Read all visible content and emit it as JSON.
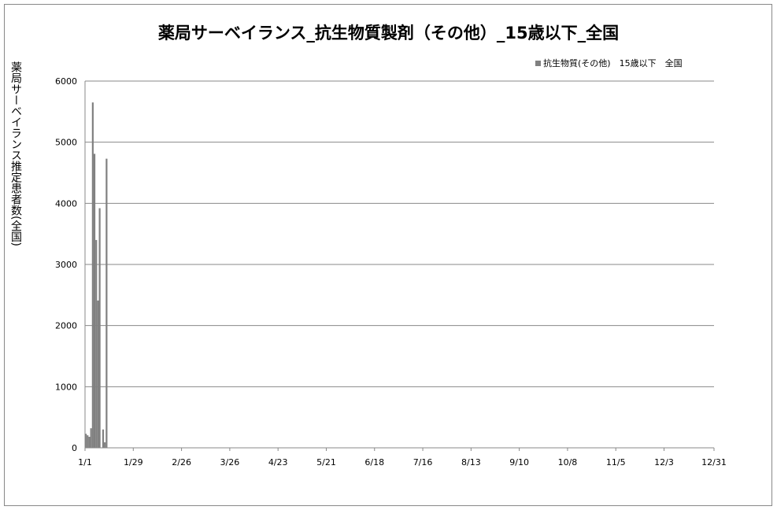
{
  "chart_data": {
    "type": "bar",
    "title": "薬局サーベイランス_抗生物質製剤（その他）_15歳以下_全国",
    "ylabel": "薬局サーベイランス推定患者数(全国)",
    "xlabel": "",
    "legend": {
      "entries": [
        "抗生物質(その他)　15歳以下　全国"
      ],
      "position": "top-right"
    },
    "ylim": [
      0,
      6000
    ],
    "yticks": [
      0,
      1000,
      2000,
      3000,
      4000,
      5000,
      6000
    ],
    "xticks": [
      "1/1",
      "1/29",
      "2/26",
      "3/26",
      "4/23",
      "5/21",
      "6/18",
      "7/16",
      "8/13",
      "9/10",
      "10/8",
      "11/5",
      "12/3",
      "12/31"
    ],
    "grid": "horizontal",
    "bar_color": "#808080",
    "x_days_total": 365,
    "categories": [
      "1/1",
      "1/2",
      "1/3",
      "1/4",
      "1/5",
      "1/6",
      "1/7",
      "1/8",
      "1/9",
      "1/10",
      "1/11",
      "1/12",
      "1/13"
    ],
    "values": [
      230,
      205,
      180,
      320,
      5650,
      4810,
      3400,
      2410,
      3920,
      0,
      300,
      90,
      4730
    ]
  }
}
